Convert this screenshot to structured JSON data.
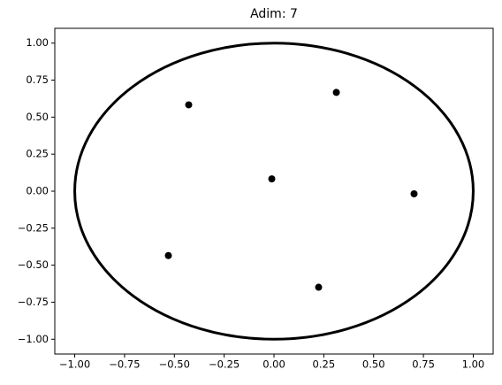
{
  "chart_data": {
    "type": "scatter",
    "title": "Adim: 7",
    "x": [
      -0.428,
      0.313,
      -0.011,
      0.703,
      -0.53,
      0.224
    ],
    "values": [
      0.583,
      0.667,
      0.083,
      -0.018,
      -0.435,
      -0.649
    ],
    "color": "#000000",
    "circle": {
      "center": [
        0,
        0
      ],
      "radius": 1,
      "color": "#000000"
    },
    "xlim": [
      -1.1,
      1.1
    ],
    "xticks": [
      {
        "value": -1,
        "label": "−1.00"
      },
      {
        "value": -0.75,
        "label": "−0.75"
      },
      {
        "value": -0.5,
        "label": "−0.50"
      },
      {
        "value": -0.25,
        "label": "−0.25"
      },
      {
        "value": 0,
        "label": "0.00"
      },
      {
        "value": 0.25,
        "label": "0.25"
      },
      {
        "value": 0.5,
        "label": "0.50"
      },
      {
        "value": 0.75,
        "label": "0.75"
      },
      {
        "value": 1,
        "label": "1.00"
      }
    ],
    "ylim": [
      -1.1,
      1.1
    ],
    "yticks": [
      {
        "value": -1,
        "label": "−1.00"
      },
      {
        "value": -0.75,
        "label": "−0.75"
      },
      {
        "value": -0.5,
        "label": "−0.50"
      },
      {
        "value": -0.25,
        "label": "−0.25"
      },
      {
        "value": 0,
        "label": "0.00"
      },
      {
        "value": 0.25,
        "label": "0.25"
      },
      {
        "value": 0.5,
        "label": "0.50"
      },
      {
        "value": 0.75,
        "label": "0.75"
      },
      {
        "value": 1,
        "label": "1.00"
      }
    ]
  }
}
